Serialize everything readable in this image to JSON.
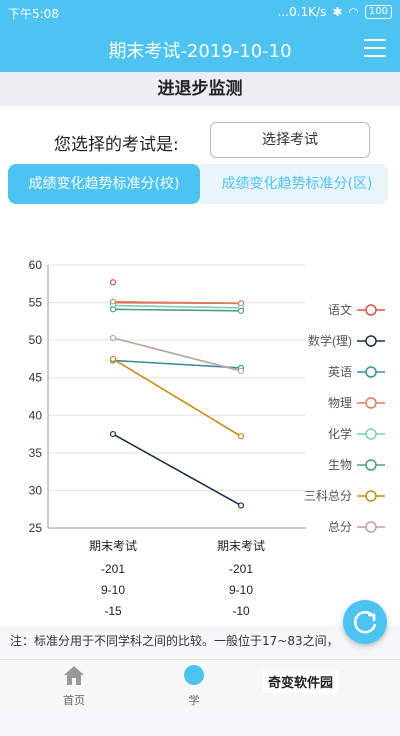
{
  "status_bar": {
    "time": "下午5:08",
    "network": "...0.1K/s",
    "battery": "100"
  },
  "header": {
    "title": "期末考试-2019-10-10"
  },
  "section_title": "进退步监测",
  "selector": {
    "prompt": "您选择的考试是:",
    "button": "选择考试"
  },
  "tabs": [
    {
      "label": "成绩变化趋势标准分(校)",
      "active": true
    },
    {
      "label": "成绩变化趋势标准分(区)",
      "active": false
    }
  ],
  "chart_data": {
    "type": "line",
    "categories": [
      "期末考试",
      "期末考试"
    ],
    "category_sublabels": [
      [
        "-201",
        "9-10",
        "-15"
      ],
      [
        "-201",
        "9-10",
        "-10"
      ]
    ],
    "ylim": [
      25,
      60
    ],
    "yticks": [
      25,
      30,
      35,
      40,
      45,
      50,
      55,
      60
    ],
    "grid": true,
    "legend_position": "right",
    "series": [
      {
        "name": "语文",
        "color": "#d9534f",
        "values": [
          55.0,
          54.9
        ]
      },
      {
        "name": "数学(理)",
        "color": "#1c2e4a",
        "values": [
          37.5,
          28.0
        ]
      },
      {
        "name": "英语",
        "color": "#3a8f9a",
        "values": [
          47.3,
          46.3
        ]
      },
      {
        "name": "物理",
        "color": "#e07c5a",
        "values": [
          55.1,
          54.9
        ]
      },
      {
        "name": "化学",
        "color": "#7fcfae",
        "values": [
          54.6,
          54.3
        ]
      },
      {
        "name": "生物",
        "color": "#4a9d80",
        "values": [
          54.1,
          53.9
        ]
      },
      {
        "name": "三科总分",
        "color": "#c98a16",
        "values": [
          47.5,
          37.2
        ]
      },
      {
        "name": "总分",
        "color": "#c0a0a0",
        "values": [
          50.3,
          45.9
        ]
      }
    ],
    "extra_points": [
      {
        "x": "期末考试",
        "y": 57.7,
        "color": "#d9534f"
      }
    ]
  },
  "note": "注：标准分用于不同学科之间的比较。一般位于17~83之间，",
  "bottom_nav": [
    {
      "label": "首页",
      "icon": "home-icon"
    },
    {
      "label": "学",
      "icon": "study-icon"
    }
  ],
  "watermark": "奇变软件园",
  "accent": "#4dc3f2"
}
